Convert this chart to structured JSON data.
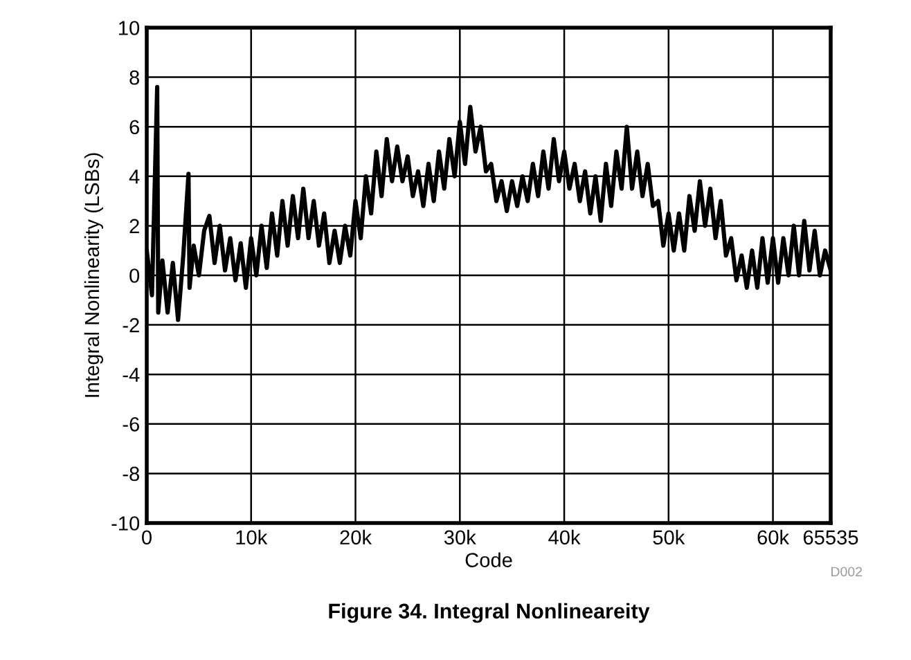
{
  "chart_data": {
    "type": "line",
    "title": "Figure 34. Integral Nonlineareity",
    "xlabel": "Code",
    "ylabel": "Integral Nonlinearity (LSBs)",
    "annotations": [
      "D002"
    ],
    "xlim": [
      0,
      65535
    ],
    "xticks": [
      0,
      {
        "value": 10000,
        "label": "10k"
      },
      {
        "value": 20000,
        "label": "20k"
      },
      {
        "value": 30000,
        "label": "30k"
      },
      {
        "value": 40000,
        "label": "40k"
      },
      {
        "value": 50000,
        "label": "50k"
      },
      {
        "value": 60000,
        "label": "60k"
      },
      65535
    ],
    "ylim": [
      -10,
      10
    ],
    "yticks": [
      -10,
      -8,
      -6,
      -4,
      -2,
      0,
      2,
      4,
      6,
      8,
      10
    ],
    "grid": true,
    "legend": false,
    "marker": "none",
    "line_style": "solid",
    "series": [
      {
        "color": "#000000",
        "x": [
          0,
          500,
          1000,
          1100,
          1500,
          2000,
          2500,
          3000,
          3500,
          4000,
          4100,
          4500,
          5000,
          5500,
          6000,
          6500,
          7000,
          7500,
          8000,
          8500,
          9000,
          9500,
          10000,
          10500,
          11000,
          11500,
          12000,
          12500,
          13000,
          13500,
          14000,
          14500,
          15000,
          15500,
          16000,
          16500,
          17000,
          17500,
          18000,
          18500,
          19000,
          19500,
          20000,
          20500,
          21000,
          21500,
          22000,
          22500,
          23000,
          23500,
          24000,
          24500,
          25000,
          25500,
          26000,
          26500,
          27000,
          27500,
          28000,
          28500,
          29000,
          29500,
          30000,
          30500,
          31000,
          31500,
          32000,
          32500,
          33000,
          33500,
          34000,
          34500,
          35000,
          35500,
          36000,
          36500,
          37000,
          37500,
          38000,
          38500,
          39000,
          39500,
          40000,
          40500,
          41000,
          41500,
          42000,
          42500,
          43000,
          43500,
          44000,
          44500,
          45000,
          45500,
          46000,
          46500,
          47000,
          47500,
          48000,
          48500,
          49000,
          49500,
          50000,
          50500,
          51000,
          51500,
          52000,
          52500,
          53000,
          53500,
          54000,
          54500,
          55000,
          55500,
          56000,
          56500,
          57000,
          57500,
          58000,
          58500,
          59000,
          59500,
          60000,
          60500,
          61000,
          61500,
          62000,
          62500,
          63000,
          63500,
          64000,
          64500,
          65000,
          65535
        ],
        "values": [
          1,
          -0.8,
          7.6,
          -1.5,
          0.6,
          -1.5,
          0.5,
          -1.8,
          0.8,
          4.1,
          -0.5,
          1.2,
          0,
          1.8,
          2.4,
          0.5,
          2,
          0.2,
          1.5,
          -0.2,
          1.3,
          -0.5,
          1.5,
          0,
          2,
          0.3,
          2.5,
          0.8,
          3,
          1.2,
          3.2,
          1.5,
          3.5,
          1.5,
          3,
          1.2,
          2.5,
          0.5,
          1.8,
          0.5,
          2,
          0.8,
          3,
          1.5,
          4,
          2.5,
          5,
          3.2,
          5.5,
          3.8,
          5.2,
          3.8,
          4.8,
          3.2,
          4.2,
          2.8,
          4.5,
          3,
          5,
          3.5,
          5.5,
          4,
          6.2,
          4.5,
          6.8,
          5,
          6,
          4.2,
          4.5,
          3,
          3.8,
          2.6,
          3.8,
          2.8,
          4,
          3,
          4.5,
          3.2,
          5,
          3.5,
          5.5,
          3.8,
          5,
          3.5,
          4.5,
          3,
          4.2,
          2.5,
          4,
          2.2,
          4.5,
          2.8,
          5,
          3.5,
          6,
          3.5,
          5,
          3.2,
          4.5,
          2.8,
          3,
          1.2,
          2.5,
          1,
          2.5,
          1,
          3.2,
          1.8,
          3.8,
          2,
          3.5,
          1.5,
          3,
          0.8,
          1.5,
          -0.2,
          0.8,
          -0.5,
          1,
          -0.5,
          1.5,
          -0.3,
          1.5,
          -0.3,
          1.5,
          0,
          2,
          0,
          2.2,
          0.2,
          1.8,
          0,
          1,
          0.2
        ]
      }
    ]
  }
}
